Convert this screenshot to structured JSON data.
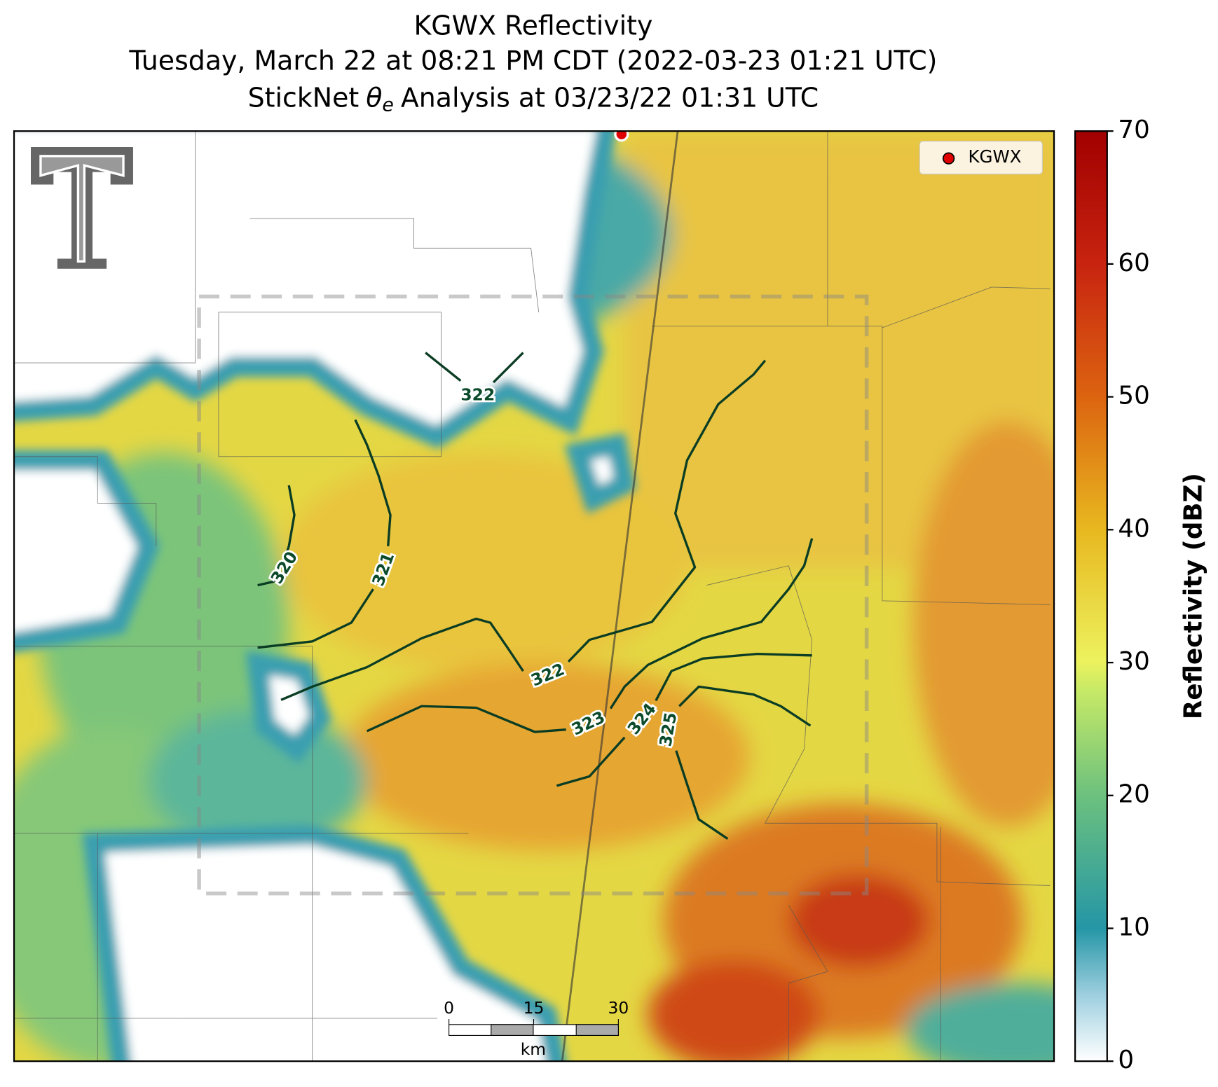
{
  "title": {
    "line1": "KGWX Reflectivity",
    "line2": "Tuesday, March 22 at 08:21 PM CDT (2022-03-23 01:21 UTC)",
    "line3": {
      "prefix": "StickNet",
      "symbol": "θ",
      "subscript": "e",
      "suffix": "Analysis at 03/23/22 01:31 UTC"
    }
  },
  "legend": {
    "label": "KGWX"
  },
  "colorbar": {
    "label": "Reflectivity (dBZ)",
    "lim": [
      0,
      70
    ],
    "ticks": [
      0,
      10,
      20,
      30,
      40,
      50,
      60,
      70
    ]
  },
  "contours": [
    {
      "label": 320
    },
    {
      "label": 321
    },
    {
      "label": 322
    },
    {
      "label": 322
    },
    {
      "label": 323
    },
    {
      "label": 324
    },
    {
      "label": 325
    }
  ],
  "scalebar": {
    "lim": [
      0,
      30
    ],
    "ticks": [
      0,
      15,
      30
    ],
    "unit": "km"
  }
}
